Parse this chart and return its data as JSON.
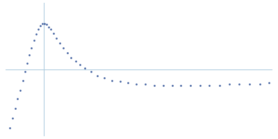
{
  "background_color": "#ffffff",
  "dot_color": "#3a5a9c",
  "dot_size": 3.5,
  "axis_color": "#a8c8dc",
  "axis_linewidth": 0.7,
  "figsize": [
    4.0,
    2.0
  ],
  "dpi": 100,
  "xlim": [
    -0.3,
    1.8
  ],
  "ylim": [
    -0.55,
    0.55
  ],
  "vline_x": 0.0,
  "hline_y": 0.0,
  "x_data": [
    -0.265,
    -0.245,
    -0.225,
    -0.205,
    -0.185,
    -0.165,
    -0.148,
    -0.13,
    -0.112,
    -0.095,
    -0.078,
    -0.06,
    -0.043,
    -0.026,
    -0.01,
    0.006,
    0.022,
    0.038,
    0.055,
    0.075,
    0.1,
    0.125,
    0.155,
    0.185,
    0.215,
    0.25,
    0.285,
    0.325,
    0.37,
    0.42,
    0.475,
    0.535,
    0.6,
    0.665,
    0.73,
    0.8,
    0.87,
    0.94,
    1.01,
    1.08,
    1.155,
    1.23,
    1.305,
    1.385,
    1.46,
    1.54,
    1.62,
    1.7,
    1.775
  ],
  "y_data": [
    -0.48,
    -0.4,
    -0.32,
    -0.24,
    -0.17,
    -0.09,
    -0.02,
    0.05,
    0.12,
    0.18,
    0.24,
    0.29,
    0.33,
    0.36,
    0.38,
    0.38,
    0.37,
    0.35,
    0.33,
    0.3,
    0.26,
    0.22,
    0.18,
    0.14,
    0.1,
    0.07,
    0.04,
    0.01,
    -0.02,
    -0.05,
    -0.07,
    -0.09,
    -0.1,
    -0.11,
    -0.12,
    -0.12,
    -0.13,
    -0.13,
    -0.13,
    -0.13,
    -0.13,
    -0.13,
    -0.13,
    -0.13,
    -0.12,
    -0.12,
    -0.12,
    -0.12,
    -0.11
  ]
}
